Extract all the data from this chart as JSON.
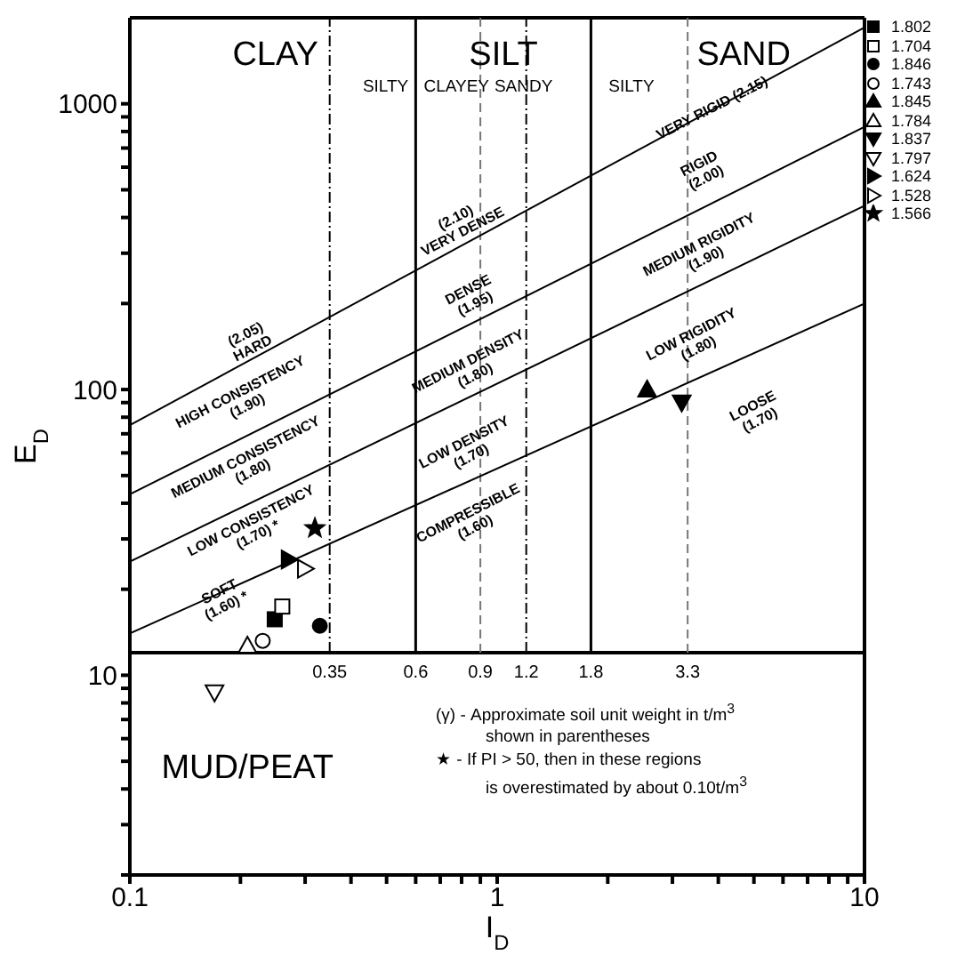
{
  "chart_data": {
    "type": "scatter",
    "xlabel": "I$_{D}$",
    "ylabel": "E$_{D}$",
    "log": "xy",
    "legend": "top right",
    "xlim": [
      0.1,
      10
    ],
    "ylim": [
      2,
      2000
    ],
    "xticks": [
      0.1,
      {
        "value": 0.2,
        "label": null
      },
      {
        "value": 0.3,
        "label": null
      },
      {
        "value": 0.4,
        "label": null
      },
      {
        "value": 0.5,
        "label": null
      },
      {
        "value": 0.6,
        "label": null
      },
      {
        "value": 0.7,
        "label": null
      },
      {
        "value": 0.8,
        "label": null
      },
      {
        "value": 0.9,
        "label": null
      },
      1,
      {
        "value": 2,
        "label": null
      },
      {
        "value": 3,
        "label": null
      },
      {
        "value": 4,
        "label": null
      },
      {
        "value": 5,
        "label": null
      },
      {
        "value": 6,
        "label": null
      },
      {
        "value": 7,
        "label": null
      },
      {
        "value": 8,
        "label": null
      },
      {
        "value": 9,
        "label": null
      },
      10
    ],
    "yticks": [
      {
        "value": 2,
        "label": null
      },
      {
        "value": 3,
        "label": null
      },
      {
        "value": 4,
        "label": null
      },
      {
        "value": 5,
        "label": null
      },
      {
        "value": 6,
        "label": null
      },
      {
        "value": 7,
        "label": null
      },
      {
        "value": 8,
        "label": null
      },
      {
        "value": 9,
        "label": null
      },
      10,
      {
        "value": 20,
        "label": null
      },
      {
        "value": 30,
        "label": null
      },
      {
        "value": 40,
        "label": null
      },
      {
        "value": 50,
        "label": null
      },
      {
        "value": 60,
        "label": null
      },
      {
        "value": 70,
        "label": null
      },
      {
        "value": 80,
        "label": null
      },
      {
        "value": 90,
        "label": null
      },
      100,
      {
        "value": 200,
        "label": null
      },
      {
        "value": 300,
        "label": null
      },
      {
        "value": 400,
        "label": null
      },
      {
        "value": 500,
        "label": null
      },
      {
        "value": 600,
        "label": null
      },
      {
        "value": 700,
        "label": null
      },
      {
        "value": 800,
        "label": null
      },
      {
        "value": 900,
        "label": null
      },
      1000
    ],
    "series": [
      {
        "type": "line",
        "color": "#000000",
        "x": [
          0.1,
          10
        ],
        "values": [
          75,
          1850
        ]
      },
      {
        "type": "line",
        "color": "#000000",
        "x": [
          0.1,
          10
        ],
        "values": [
          43,
          830
        ]
      },
      {
        "type": "line",
        "color": "#000000",
        "x": [
          0.1,
          10
        ],
        "values": [
          25,
          440
        ]
      },
      {
        "type": "line",
        "color": "#000000",
        "x": [
          0.1,
          10
        ],
        "values": [
          14,
          200
        ]
      },
      {
        "name": "1.802",
        "marker": "square",
        "color": "#000000",
        "x": [
          0.248
        ],
        "values": [
          15.7
        ]
      },
      {
        "name": "1.704",
        "marker": "square-open",
        "color": "#000000",
        "x": [
          0.26
        ],
        "values": [
          17.4
        ]
      },
      {
        "name": "1.846",
        "marker": "circle",
        "color": "#000000",
        "x": [
          0.329
        ],
        "values": [
          14.9
        ]
      },
      {
        "name": "1.743",
        "marker": "circle-open",
        "color": "#000000",
        "x": [
          0.23
        ],
        "values": [
          13.2
        ]
      },
      {
        "name": "1.845",
        "marker": "triangle",
        "color": "#000000",
        "x": [
          2.56
        ],
        "values": [
          100
        ]
      },
      {
        "name": "1.784",
        "marker": "triangle-open",
        "color": "#000000",
        "x": [
          0.209
        ],
        "values": [
          12.7
        ]
      },
      {
        "name": "1.837",
        "marker": "triangle-down",
        "color": "#000000",
        "x": [
          3.18
        ],
        "values": [
          90
        ]
      },
      {
        "name": "1.797",
        "marker": "triangle-down-open",
        "color": "#000000",
        "x": [
          0.17
        ],
        "values": [
          8.7
        ]
      },
      {
        "name": "1.624",
        "marker": "triangle-right",
        "color": "#000000",
        "x": [
          0.271
        ],
        "values": [
          25.4
        ]
      },
      {
        "name": "1.528",
        "marker": "triangle-right-open",
        "color": "#000000",
        "x": [
          0.3
        ],
        "values": [
          23.6
        ]
      },
      {
        "name": "1.566",
        "marker": "star",
        "color": "#000000",
        "x": [
          0.319
        ],
        "values": [
          32.7
        ]
      }
    ],
    "ref_lines": [
      {
        "axis": "y",
        "value": 12,
        "label": null,
        "color": "#000000",
        "line_style": "solid"
      },
      {
        "axis": "x",
        "value": 0.35,
        "label": "0.35",
        "color": "#000000",
        "line_style": "dashdot"
      },
      {
        "axis": "x",
        "value": 0.6,
        "label": "0.6",
        "color": "#000000",
        "line_style": "solid"
      },
      {
        "axis": "x",
        "value": 0.9,
        "label": "0.9",
        "color": "#777777",
        "line_style": "dashed"
      },
      {
        "axis": "x",
        "value": 1.2,
        "label": "1.2",
        "color": "#000000",
        "line_style": "dashdot"
      },
      {
        "axis": "x",
        "value": 1.8,
        "label": "1.8",
        "color": "#000000",
        "line_style": "solid"
      },
      {
        "axis": "x",
        "value": 3.3,
        "label": "3.3",
        "color": "#777777",
        "line_style": "dashed"
      }
    ],
    "annotations": [
      "CLAY",
      "SILT",
      "SAND",
      "MUD/PEAT",
      "SILTY",
      "CLAYEY",
      "SANDY",
      "SILTY",
      "(2.05)\nHARD",
      "HIGH CONSISTENCY\n(1.90)",
      "MEDIUM CONSISTENCY\n(1.80)",
      "LOW CONSISTENCY\n(1.70) *",
      "SOFT\n(1.60) *",
      "(2.10)\nVERY DENSE",
      "DENSE\n(1.95)",
      "MEDIUM DENSITY\n(1.80)",
      "LOW DENSITY\n(1.70)",
      "COMPRESSIBLE\n(1.60)",
      "VERY RIGID (2.15)",
      "RIGID\n(2.00)",
      "MEDIUM RIGIDITY\n(1.90)",
      "LOW RIGIDITY\n(1.80)",
      "LOOSE\n(1.70)",
      "(γ) - Approximate soil unit weight in t/m$^{3}$\nshown in parentheses",
      "★ - If PI > 50, then   in these regions\nis overestimated by about 0.10t/m$^{3}$"
    ]
  }
}
